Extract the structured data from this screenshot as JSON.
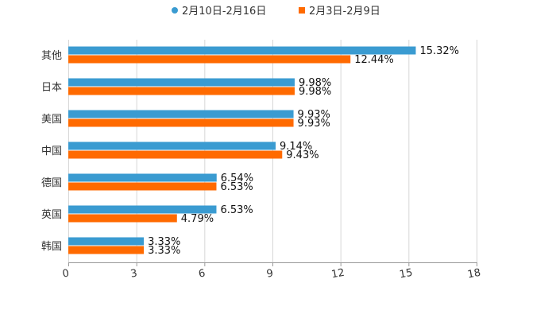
{
  "chart_data": {
    "type": "bar",
    "orientation": "horizontal",
    "title": "",
    "xlabel": "",
    "ylabel": "",
    "xlim": [
      0,
      18
    ],
    "ticks": [
      "0",
      "3",
      "6",
      "9",
      "12",
      "15",
      "18"
    ],
    "tick_values": [
      0,
      3,
      6,
      9,
      12,
      15,
      18
    ],
    "categories": [
      "其他",
      "日本",
      "美国",
      "中国",
      "德国",
      "英国",
      "韩国"
    ],
    "series": [
      {
        "name": "2月10日-2月16日",
        "color": "#3a9bd1",
        "values": [
          15.32,
          9.98,
          9.93,
          9.14,
          6.54,
          6.53,
          3.33
        ],
        "labels": [
          "15.32%",
          "9.98%",
          "9.93%",
          "9.14%",
          "6.54%",
          "6.53%",
          "3.33%"
        ]
      },
      {
        "name": "2月3日-2月9日",
        "color": "#ff6a00",
        "values": [
          12.44,
          9.98,
          9.93,
          9.43,
          6.53,
          4.79,
          3.33
        ],
        "labels": [
          "12.44%",
          "9.98%",
          "9.93%",
          "9.43%",
          "6.53%",
          "4.79%",
          "3.33%"
        ]
      }
    ],
    "legend": "top-center",
    "grid": true
  }
}
